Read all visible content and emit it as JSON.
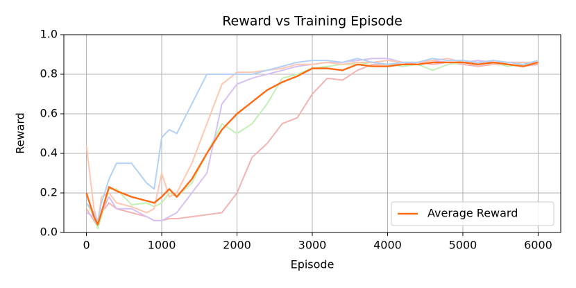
{
  "chart_data": {
    "type": "line",
    "title": "Reward vs Training Episode",
    "x_label": "Episode",
    "y_label": "Reward",
    "x": [
      0,
      100,
      150,
      200,
      300,
      400,
      600,
      800,
      900,
      1000,
      1100,
      1200,
      1400,
      1600,
      1800,
      2000,
      2200,
      2400,
      2600,
      2800,
      3000,
      3200,
      3400,
      3600,
      3800,
      4000,
      4200,
      4400,
      4600,
      4800,
      5000,
      5200,
      5400,
      5600,
      5800,
      6000
    ],
    "series": [
      {
        "name": "Average Reward",
        "color": "#ff6a13",
        "values": [
          0.2,
          0.08,
          0.04,
          0.1,
          0.23,
          0.21,
          0.18,
          0.16,
          0.15,
          0.18,
          0.22,
          0.18,
          0.27,
          0.4,
          0.52,
          0.6,
          0.66,
          0.72,
          0.76,
          0.79,
          0.83,
          0.83,
          0.82,
          0.85,
          0.84,
          0.84,
          0.85,
          0.85,
          0.86,
          0.86,
          0.86,
          0.85,
          0.86,
          0.85,
          0.84,
          0.86
        ]
      },
      {
        "color": "#b3d1f5",
        "values": [
          0.15,
          0.1,
          0.05,
          0.15,
          0.27,
          0.35,
          0.35,
          0.25,
          0.22,
          0.48,
          0.52,
          0.5,
          0.65,
          0.8,
          0.8,
          0.8,
          0.8,
          0.82,
          0.84,
          0.86,
          0.87,
          0.87,
          0.86,
          0.88,
          0.86,
          0.85,
          0.86,
          0.86,
          0.88,
          0.87,
          0.87,
          0.86,
          0.87,
          0.86,
          0.85,
          0.87
        ]
      },
      {
        "color": "#ffc7b0",
        "values": [
          0.44,
          0.12,
          0.05,
          0.18,
          0.2,
          0.15,
          0.13,
          0.1,
          0.12,
          0.3,
          0.18,
          0.2,
          0.35,
          0.55,
          0.75,
          0.81,
          0.81,
          0.82,
          0.83,
          0.85,
          0.85,
          0.86,
          0.85,
          0.86,
          0.86,
          0.87,
          0.86,
          0.86,
          0.87,
          0.88,
          0.86,
          0.86,
          0.85,
          0.86,
          0.86,
          0.86
        ]
      },
      {
        "color": "#d5c2f3",
        "values": [
          0.1,
          0.08,
          0.04,
          0.1,
          0.18,
          0.12,
          0.12,
          0.08,
          0.06,
          0.06,
          0.08,
          0.1,
          0.2,
          0.3,
          0.65,
          0.75,
          0.78,
          0.8,
          0.82,
          0.84,
          0.85,
          0.86,
          0.86,
          0.87,
          0.88,
          0.88,
          0.86,
          0.86,
          0.87,
          0.86,
          0.86,
          0.87,
          0.86,
          0.86,
          0.86,
          0.86
        ]
      },
      {
        "color": "#c2f0b5",
        "values": [
          0.15,
          0.08,
          0.02,
          0.08,
          0.22,
          0.22,
          0.14,
          0.15,
          0.13,
          0.15,
          0.2,
          0.18,
          0.25,
          0.4,
          0.55,
          0.5,
          0.55,
          0.65,
          0.78,
          0.8,
          0.83,
          0.84,
          0.85,
          0.85,
          0.86,
          0.85,
          0.84,
          0.85,
          0.82,
          0.85,
          0.86,
          0.85,
          0.86,
          0.84,
          0.85,
          0.86
        ]
      },
      {
        "color": "#f3b3b3",
        "values": [
          0.12,
          0.06,
          0.03,
          0.1,
          0.15,
          0.12,
          0.1,
          0.08,
          0.06,
          0.06,
          0.07,
          0.07,
          0.08,
          0.09,
          0.1,
          0.2,
          0.38,
          0.45,
          0.55,
          0.58,
          0.7,
          0.78,
          0.77,
          0.82,
          0.85,
          0.85,
          0.85,
          0.86,
          0.85,
          0.86,
          0.85,
          0.84,
          0.85,
          0.85,
          0.84,
          0.85
        ]
      }
    ],
    "xlim": [
      -300,
      6300
    ],
    "ylim": [
      0,
      1
    ],
    "xticks": [
      0,
      1000,
      2000,
      3000,
      4000,
      5000,
      6000
    ],
    "yticks": [
      {
        "value": 0,
        "label": "0.0"
      },
      0.2,
      0.4,
      0.6,
      0.8,
      {
        "value": 1,
        "label": "1.0"
      }
    ],
    "grid": true,
    "legend": "lower right"
  }
}
